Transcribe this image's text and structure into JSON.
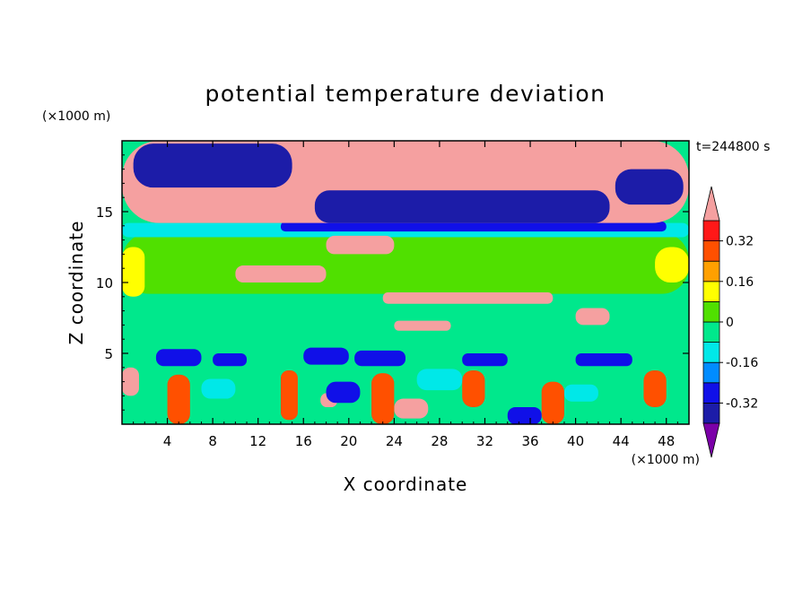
{
  "chart_data": {
    "type": "heatmap",
    "title": "potential temperature deviation",
    "xlabel": "X coordinate",
    "ylabel": "Z coordinate",
    "x_unit": "(×1000 m)",
    "y_unit": "(×1000 m)",
    "time_label": "t=244800 s",
    "xlim": [
      0,
      50
    ],
    "ylim": [
      0,
      20
    ],
    "x_ticks": [
      4,
      8,
      12,
      16,
      20,
      24,
      28,
      32,
      36,
      40,
      44,
      48
    ],
    "y_ticks": [
      5,
      10,
      15
    ],
    "colorbar": {
      "levels": [
        -0.4,
        -0.32,
        -0.24,
        -0.16,
        -0.08,
        0,
        0.08,
        0.16,
        0.24,
        0.32,
        0.4
      ],
      "colors": [
        "#7b00a8",
        "#1c1ca8",
        "#1010e8",
        "#008cff",
        "#00e8e8",
        "#00e88c",
        "#50e000",
        "#ffff00",
        "#ffa000",
        "#ff5000",
        "#ff1818",
        "#f5a0a0"
      ],
      "labels": [
        "0.32",
        "0.16",
        "0",
        "-0.16",
        "-0.32"
      ],
      "label_values": [
        0.32,
        0.16,
        0,
        -0.16,
        -0.32
      ],
      "extend": "both"
    },
    "regions": [
      {
        "level": -0.08,
        "x": [
          0,
          50
        ],
        "z": [
          0,
          20
        ]
      },
      {
        "level": 0.0,
        "x": [
          0,
          50
        ],
        "z": [
          9.2,
          13.5
        ]
      },
      {
        "level": -0.16,
        "x": [
          0,
          50
        ],
        "z": [
          13.2,
          14.2
        ]
      },
      {
        "level": -0.32,
        "x": [
          14,
          48
        ],
        "z": [
          13.6,
          14.3
        ]
      },
      {
        "level": 0.4,
        "x": [
          0,
          50
        ],
        "z": [
          14.2,
          20
        ]
      },
      {
        "level": -0.4,
        "x": [
          1,
          15
        ],
        "z": [
          16.7,
          19.8
        ]
      },
      {
        "level": -0.4,
        "x": [
          17,
          43
        ],
        "z": [
          14.2,
          16.5
        ]
      },
      {
        "level": -0.4,
        "x": [
          43.5,
          49.5
        ],
        "z": [
          15.5,
          18
        ]
      },
      {
        "level": 0.08,
        "x": [
          0,
          2
        ],
        "z": [
          9,
          12.5
        ]
      },
      {
        "level": 0.08,
        "x": [
          47,
          50
        ],
        "z": [
          10,
          12.5
        ]
      },
      {
        "level": 0.4,
        "x": [
          10,
          18
        ],
        "z": [
          10,
          11.2
        ]
      },
      {
        "level": 0.4,
        "x": [
          18,
          24
        ],
        "z": [
          12,
          13.3
        ]
      },
      {
        "level": 0.4,
        "x": [
          23,
          38
        ],
        "z": [
          8.5,
          9.3
        ]
      },
      {
        "level": 0.4,
        "x": [
          24,
          29
        ],
        "z": [
          6.6,
          7.3
        ]
      },
      {
        "level": 0.4,
        "x": [
          40,
          43
        ],
        "z": [
          7,
          8.2
        ]
      },
      {
        "level": 0.4,
        "x": [
          0,
          1.5
        ],
        "z": [
          2,
          4
        ]
      },
      {
        "level": 0.4,
        "x": [
          17.5,
          19
        ],
        "z": [
          1.2,
          2.2
        ]
      },
      {
        "level": 0.4,
        "x": [
          24,
          27
        ],
        "z": [
          0.4,
          1.8
        ]
      },
      {
        "level": 0.24,
        "x": [
          4,
          6
        ],
        "z": [
          0,
          3.5
        ]
      },
      {
        "level": 0.24,
        "x": [
          14,
          15.5
        ],
        "z": [
          0.3,
          3.8
        ]
      },
      {
        "level": 0.24,
        "x": [
          22,
          24
        ],
        "z": [
          0,
          3.6
        ]
      },
      {
        "level": 0.24,
        "x": [
          30,
          32
        ],
        "z": [
          1.2,
          3.8
        ]
      },
      {
        "level": 0.24,
        "x": [
          37,
          39
        ],
        "z": [
          0,
          3.0
        ]
      },
      {
        "level": 0.24,
        "x": [
          46,
          48
        ],
        "z": [
          1.2,
          3.8
        ]
      },
      {
        "level": -0.32,
        "x": [
          3,
          7
        ],
        "z": [
          4.1,
          5.3
        ]
      },
      {
        "level": -0.32,
        "x": [
          8,
          11
        ],
        "z": [
          4.1,
          5.0
        ]
      },
      {
        "level": -0.32,
        "x": [
          16,
          20
        ],
        "z": [
          4.2,
          5.4
        ]
      },
      {
        "level": -0.32,
        "x": [
          20.5,
          25
        ],
        "z": [
          4.1,
          5.2
        ]
      },
      {
        "level": -0.32,
        "x": [
          30,
          34
        ],
        "z": [
          4.1,
          5.0
        ]
      },
      {
        "level": -0.32,
        "x": [
          40,
          45
        ],
        "z": [
          4.1,
          5.0
        ]
      },
      {
        "level": -0.32,
        "x": [
          34,
          37
        ],
        "z": [
          0,
          1.2
        ]
      },
      {
        "level": -0.32,
        "x": [
          18,
          21
        ],
        "z": [
          1.5,
          3.0
        ]
      },
      {
        "level": -0.16,
        "x": [
          26,
          30
        ],
        "z": [
          2.4,
          3.9
        ]
      },
      {
        "level": -0.16,
        "x": [
          39,
          42
        ],
        "z": [
          1.6,
          2.8
        ]
      },
      {
        "level": -0.16,
        "x": [
          7,
          10
        ],
        "z": [
          1.8,
          3.2
        ]
      }
    ]
  }
}
